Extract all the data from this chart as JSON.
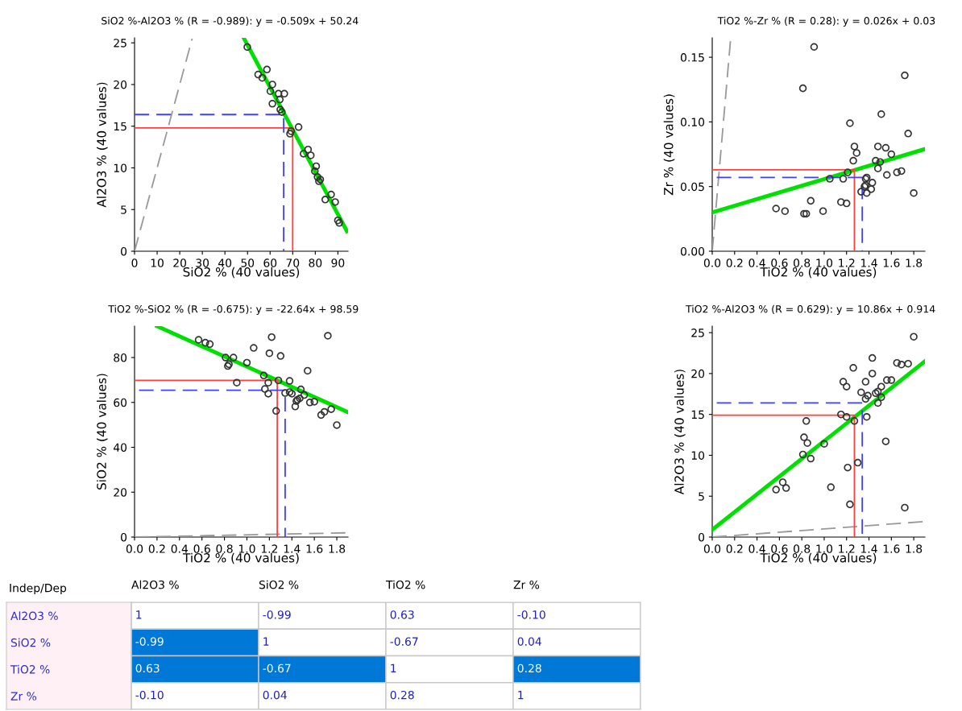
{
  "chart_data": [
    {
      "type": "scatter",
      "title": "SiO2 %-Al2O3 % (R = -0.989): y = -0.509x + 50.24",
      "xlabel": "SiO2 % (40 values)",
      "ylabel": "Al2O3 % (40 values)",
      "xlim": [
        0,
        94.5
      ],
      "ylim": [
        0,
        25.6
      ],
      "xticks": [
        0,
        10,
        20,
        30,
        40,
        50,
        60,
        70,
        80,
        90
      ],
      "yticks": [
        0,
        5,
        10,
        15,
        20,
        25
      ],
      "grid": false,
      "series": [
        {
          "type": "scatter",
          "marker": "circle",
          "color": "#333333",
          "x": [
            49.9,
            54.7,
            56.5,
            58.6,
            61.0,
            60.1,
            63.7,
            66.3,
            61.0,
            64.3,
            64.5,
            65.2,
            68.8,
            69.3,
            72.6,
            74.8,
            76.8,
            78.0,
            80.4,
            79.8,
            81.0,
            82.2,
            84.4,
            87.0,
            88.8,
            90.0,
            90.6,
            81.6
          ],
          "values": [
            24.5,
            21.2,
            20.8,
            21.8,
            20.0,
            19.2,
            18.9,
            18.9,
            17.7,
            18.2,
            17.0,
            16.7,
            14.1,
            14.4,
            14.9,
            11.7,
            12.2,
            11.5,
            10.2,
            9.6,
            8.9,
            8.6,
            6.2,
            6.8,
            5.9,
            3.7,
            3.4,
            8.4
          ]
        },
        {
          "type": "line",
          "marker": "none",
          "color": "#00e000",
          "line_style": "solid",
          "x": [
            48.5,
            94.0
          ],
          "values": [
            25.5,
            2.4
          ]
        },
        {
          "type": "line",
          "marker": "none",
          "color": "#999999",
          "line_style": "dashed",
          "x": [
            0,
            25.5
          ],
          "values": [
            0,
            25.5
          ]
        },
        {
          "type": "line",
          "marker": "none",
          "color": "#ff4040",
          "line_style": "solid",
          "x": [
            0,
            70,
            70
          ],
          "values": [
            14.8,
            14.8,
            0
          ]
        },
        {
          "type": "line",
          "marker": "none",
          "color": "#4040ff",
          "line_style": "dashed",
          "x": [
            0,
            66,
            66
          ],
          "values": [
            16.4,
            16.4,
            0
          ]
        }
      ]
    },
    {
      "type": "scatter",
      "title": "TiO2 %-Zr % (R = 0.28): y = 0.026x + 0.03",
      "xlabel": "TiO2 % (40 values)",
      "ylabel": "Zr % (40 values)",
      "xlim": [
        0,
        1.9
      ],
      "ylim": [
        0,
        0.165
      ],
      "xticks": [
        {
          "value": 0,
          "label": "0.0"
        },
        {
          "value": 0.2,
          "label": "0.2"
        },
        {
          "value": 0.4,
          "label": "0.4"
        },
        {
          "value": 0.6,
          "label": "0.6"
        },
        {
          "value": 0.8,
          "label": "0.8"
        },
        {
          "value": 1,
          "label": "1.0"
        },
        {
          "value": 1.2,
          "label": "1.2"
        },
        {
          "value": 1.4,
          "label": "1.4"
        },
        {
          "value": 1.6,
          "label": "1.6"
        },
        {
          "value": 1.8,
          "label": "1.8"
        }
      ],
      "yticks": [
        {
          "value": 0,
          "label": "0.00"
        },
        {
          "value": 0.05,
          "label": "0.05"
        },
        {
          "value": 0.1,
          "label": "0.10"
        },
        {
          "value": 0.15,
          "label": "0.15"
        }
      ],
      "grid": false,
      "series": [
        {
          "type": "scatter",
          "marker": "circle",
          "color": "#333333",
          "x": [
            0.91,
            0.81,
            1.72,
            1.51,
            1.23,
            1.75,
            1.27,
            1.48,
            1.55,
            1.29,
            1.6,
            1.26,
            1.46,
            1.5,
            1.48,
            1.69,
            1.65,
            1.21,
            1.56,
            1.38,
            1.37,
            1.17,
            1.05,
            1.43,
            1.37,
            1.36,
            1.42,
            1.33,
            1.38,
            1.8,
            0.88,
            1.15,
            1.2,
            0.57,
            0.65,
            0.99,
            0.82,
            0.84
          ],
          "values": [
            0.158,
            0.126,
            0.136,
            0.106,
            0.099,
            0.091,
            0.081,
            0.081,
            0.08,
            0.076,
            0.075,
            0.07,
            0.07,
            0.069,
            0.064,
            0.062,
            0.061,
            0.061,
            0.059,
            0.057,
            0.056,
            0.056,
            0.056,
            0.053,
            0.051,
            0.05,
            0.048,
            0.046,
            0.045,
            0.045,
            0.039,
            0.038,
            0.037,
            0.033,
            0.031,
            0.031,
            0.029,
            0.029
          ]
        },
        {
          "type": "line",
          "marker": "none",
          "color": "#00e000",
          "line_style": "solid",
          "x": [
            0,
            1.9
          ],
          "values": [
            0.03,
            0.079
          ]
        },
        {
          "type": "line",
          "marker": "none",
          "color": "#999999",
          "line_style": "dashed",
          "x": [
            0,
            0.164
          ],
          "values": [
            0,
            0.164
          ]
        },
        {
          "type": "line",
          "marker": "none",
          "color": "#ff4040",
          "line_style": "solid",
          "x": [
            0,
            1.27,
            1.27
          ],
          "values": [
            0.063,
            0.063,
            0
          ]
        },
        {
          "type": "line",
          "marker": "none",
          "color": "#4040ff",
          "line_style": "dashed",
          "x": [
            0.04,
            1.34,
            1.34
          ],
          "values": [
            0.057,
            0.057,
            0
          ]
        }
      ]
    },
    {
      "type": "scatter",
      "title": "TiO2 %-SiO2 % (R = -0.675): y = -22.64x + 98.59",
      "xlabel": "TiO2 % (40 values)",
      "ylabel": "SiO2 % (40 values)",
      "xlim": [
        0,
        1.9
      ],
      "ylim": [
        0,
        94
      ],
      "xticks": [
        {
          "value": 0,
          "label": "0.0"
        },
        {
          "value": 0.2,
          "label": "0.2"
        },
        {
          "value": 0.4,
          "label": "0.4"
        },
        {
          "value": 0.6,
          "label": "0.6"
        },
        {
          "value": 0.8,
          "label": "0.8"
        },
        {
          "value": 1,
          "label": "1.0"
        },
        {
          "value": 1.2,
          "label": "1.2"
        },
        {
          "value": 1.4,
          "label": "1.4"
        },
        {
          "value": 1.6,
          "label": "1.6"
        },
        {
          "value": 1.8,
          "label": "1.8"
        }
      ],
      "yticks": [
        0,
        20,
        40,
        60,
        80
      ],
      "grid": false,
      "series": [
        {
          "type": "scatter",
          "marker": "circle",
          "color": "#333333",
          "x": [
            0.57,
            0.63,
            0.67,
            1.72,
            1.22,
            1.06,
            1.2,
            1.3,
            0.81,
            0.88,
            1.0,
            0.84,
            0.83,
            1.54,
            1.15,
            1.28,
            1.38,
            0.91,
            1.19,
            1.16,
            1.48,
            1.34,
            1.38,
            1.4,
            1.19,
            1.51,
            1.45,
            1.47,
            1.44,
            1.56,
            1.6,
            1.43,
            1.75,
            1.69,
            1.66,
            1.26,
            1.8
          ],
          "values": [
            87.9,
            86.6,
            86.0,
            89.7,
            89.1,
            84.3,
            81.9,
            80.7,
            80.0,
            80.0,
            77.7,
            77.0,
            76.2,
            74.1,
            72.0,
            69.8,
            69.6,
            68.8,
            68.8,
            66.0,
            65.8,
            64.2,
            64.6,
            63.9,
            63.9,
            63.3,
            61.2,
            61.8,
            60.6,
            60.0,
            60.3,
            58.2,
            57.0,
            55.8,
            54.4,
            56.2,
            49.9
          ]
        },
        {
          "type": "line",
          "marker": "none",
          "color": "#00e000",
          "line_style": "solid",
          "x": [
            0.2,
            1.9
          ],
          "values": [
            94.0,
            55.6
          ]
        },
        {
          "type": "line",
          "marker": "none",
          "color": "#999999",
          "line_style": "dashed",
          "x": [
            0,
            1.9
          ],
          "values": [
            0,
            1.9
          ]
        },
        {
          "type": "line",
          "marker": "none",
          "color": "#ff4040",
          "line_style": "solid",
          "x": [
            0,
            1.27,
            1.27
          ],
          "values": [
            69.8,
            69.8,
            0
          ]
        },
        {
          "type": "line",
          "marker": "none",
          "color": "#4040ff",
          "line_style": "dashed",
          "x": [
            0.04,
            1.34,
            1.34
          ],
          "values": [
            65.4,
            65.4,
            0
          ]
        }
      ]
    },
    {
      "type": "scatter",
      "title": "TiO2 %-Al2O3 % (R = 0.629): y = 10.86x + 0.914",
      "xlabel": "TiO2 % (40 values)",
      "ylabel": "Al2O3 % (40 values)",
      "xlim": [
        0,
        1.9
      ],
      "ylim": [
        0,
        25.8
      ],
      "xticks": [
        {
          "value": 0,
          "label": "0.0"
        },
        {
          "value": 0.2,
          "label": "0.2"
        },
        {
          "value": 0.4,
          "label": "0.4"
        },
        {
          "value": 0.6,
          "label": "0.6"
        },
        {
          "value": 0.8,
          "label": "0.8"
        },
        {
          "value": 1,
          "label": "1.0"
        },
        {
          "value": 1.2,
          "label": "1.2"
        },
        {
          "value": 1.4,
          "label": "1.4"
        },
        {
          "value": 1.6,
          "label": "1.6"
        },
        {
          "value": 1.8,
          "label": "1.8"
        }
      ],
      "yticks": [
        0,
        5,
        10,
        15,
        20,
        25
      ],
      "grid": false,
      "series": [
        {
          "type": "scatter",
          "marker": "circle",
          "color": "#333333",
          "x": [
            1.8,
            1.43,
            1.26,
            1.65,
            1.69,
            1.75,
            1.43,
            1.17,
            1.2,
            1.37,
            1.56,
            1.6,
            1.51,
            1.33,
            1.46,
            1.48,
            1.39,
            1.37,
            1.51,
            1.48,
            1.15,
            1.2,
            1.27,
            1.38,
            0.84,
            0.82,
            0.85,
            1.0,
            1.55,
            0.81,
            0.88,
            1.3,
            1.21,
            0.63,
            0.57,
            0.66,
            1.06,
            1.23,
            1.72
          ],
          "values": [
            24.5,
            21.9,
            20.7,
            21.3,
            21.1,
            21.2,
            20.0,
            19.0,
            18.4,
            19.0,
            19.2,
            19.2,
            18.4,
            17.7,
            17.6,
            17.8,
            17.3,
            16.9,
            17.1,
            16.4,
            15.0,
            14.7,
            14.2,
            14.7,
            14.2,
            12.2,
            11.5,
            11.4,
            11.7,
            10.1,
            9.6,
            9.1,
            8.5,
            6.7,
            5.8,
            6.0,
            6.1,
            4.0,
            3.6
          ]
        },
        {
          "type": "line",
          "marker": "none",
          "color": "#00e000",
          "line_style": "solid",
          "x": [
            0,
            1.9
          ],
          "values": [
            0.9,
            21.5
          ]
        },
        {
          "type": "line",
          "marker": "none",
          "color": "#999999",
          "line_style": "dashed",
          "x": [
            0,
            1.9
          ],
          "values": [
            0,
            1.9
          ]
        },
        {
          "type": "line",
          "marker": "none",
          "color": "#ff4040",
          "line_style": "solid",
          "x": [
            0,
            1.27,
            1.27
          ],
          "values": [
            14.9,
            14.9,
            0
          ]
        },
        {
          "type": "line",
          "marker": "none",
          "color": "#4040ff",
          "line_style": "dashed",
          "x": [
            0.04,
            1.34,
            1.34
          ],
          "values": [
            16.4,
            16.4,
            0
          ]
        }
      ]
    },
    {
      "type": "heatmap",
      "ylabel": "Indep/Dep",
      "categories": [
        "Al2O3 %",
        "SiO2 %",
        "TiO2 %",
        "Zr %"
      ],
      "y_categories": [
        "Al2O3 %",
        "SiO2 %",
        "TiO2 %",
        "Zr %"
      ],
      "cells": [
        [
          1,
          -0.99,
          0.63,
          -0.1
        ],
        [
          -0.99,
          1,
          -0.67,
          0.04
        ],
        [
          0.63,
          -0.67,
          1,
          0.28
        ],
        [
          -0.1,
          0.04,
          0.28,
          1
        ]
      ],
      "cell_labels": [
        [
          "1",
          "-0.99",
          "0.63",
          "-0.10"
        ],
        [
          "-0.99",
          "1",
          "-0.67",
          "0.04"
        ],
        [
          "0.63",
          "-0.67",
          "1",
          "0.28"
        ],
        [
          "-0.10",
          "0.04",
          "0.28",
          "1"
        ]
      ],
      "colors": [
        [
          "#ffffff",
          "#ffffff",
          "#ffffff",
          "#ffffff"
        ],
        [
          "#0078d7",
          "#ffffff",
          "#ffffff",
          "#ffffff"
        ],
        [
          "#0078d7",
          "#0078d7",
          "#ffffff",
          "#0078d7"
        ],
        [
          "#ffffff",
          "#ffffff",
          "#ffffff",
          "#ffffff"
        ]
      ]
    }
  ]
}
